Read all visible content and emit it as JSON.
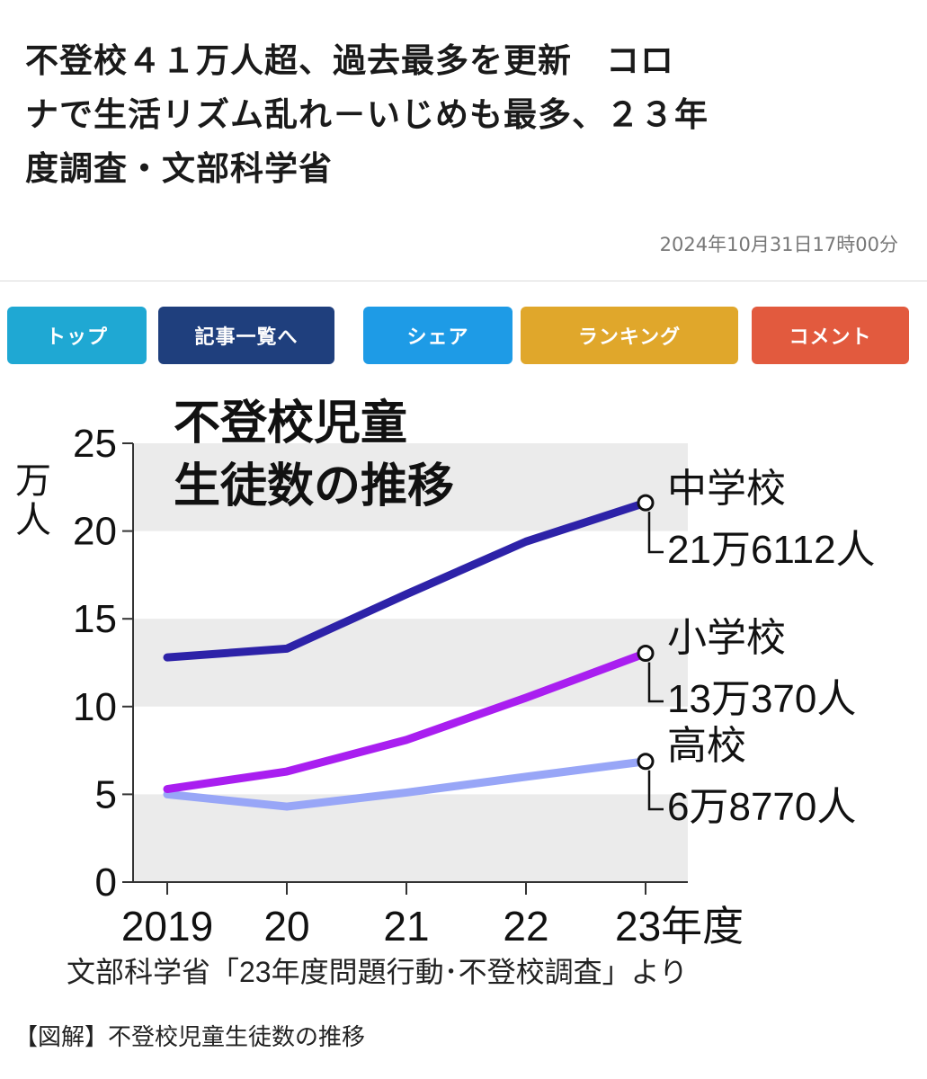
{
  "article": {
    "title_lines": [
      "不登校４１万人超、過去最多を更新　コロ",
      "ナで生活リズム乱れ－いじめも最多、２３年",
      "度調査・文部科学省"
    ],
    "timestamp": "2024年10月31日17時00分"
  },
  "nav_buttons": [
    {
      "label": "トップ",
      "color": "#1fa8d3"
    },
    {
      "label": "記事一覧へ",
      "color": "#1f3f7d"
    },
    {
      "label": "シェア",
      "color": "#1e9be6"
    },
    {
      "label": "ランキング",
      "color": "#e0a72b"
    },
    {
      "label": "コメント",
      "color": "#e25a3e"
    }
  ],
  "chart_data": {
    "type": "line",
    "title_lines": [
      "不登校児童",
      "生徒数の推移"
    ],
    "ylabel_chars": [
      "万",
      "人"
    ],
    "categories": [
      "2019",
      "20",
      "21",
      "22",
      "23年度"
    ],
    "ylim": [
      0,
      25
    ],
    "yticks": [
      "0",
      "5",
      "10",
      "15",
      "20",
      "25"
    ],
    "series": [
      {
        "name": "中学校",
        "values": [
          12.8,
          13.3,
          16.4,
          19.4,
          21.6112
        ],
        "end_label": "21万6112人",
        "color": "#2d22a8"
      },
      {
        "name": "小学校",
        "values": [
          5.3,
          6.3,
          8.1,
          10.5,
          13.037
        ],
        "end_label": "13万370人",
        "color": "#a91ef0"
      },
      {
        "name": "高校",
        "values": [
          5.0,
          4.3,
          5.1,
          6.0,
          6.877
        ],
        "end_label": "6万8770人",
        "color": "#98a6f7"
      }
    ],
    "source": "文部科学省「23年度問題行動･不登校調査」より",
    "grid": "alternating bands"
  },
  "caption": "【図解】不登校児童生徒数の推移"
}
